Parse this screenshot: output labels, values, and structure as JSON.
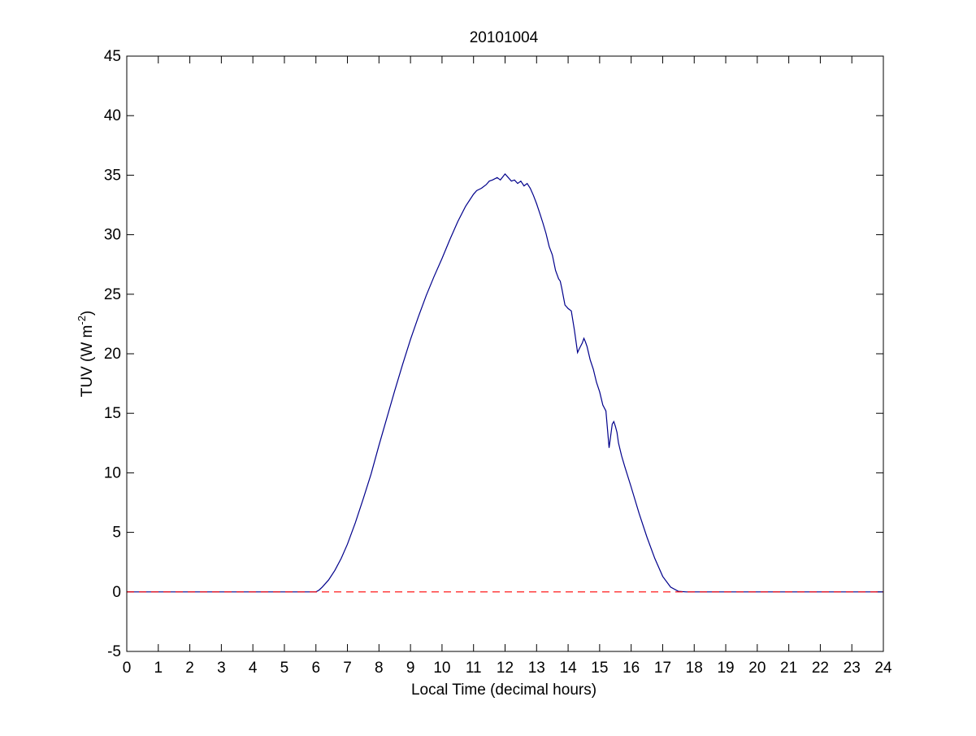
{
  "chart_data": {
    "type": "line",
    "title": "20101004",
    "xlabel": "Local Time (decimal hours)",
    "ylabel": {
      "text": "TUV (W m",
      "superscript": "-2",
      "suffix": ")"
    },
    "xlim": [
      0,
      24
    ],
    "ylim": [
      -5,
      45
    ],
    "xticks": [
      0,
      1,
      2,
      3,
      4,
      5,
      6,
      7,
      8,
      9,
      10,
      11,
      12,
      13,
      14,
      15,
      16,
      17,
      18,
      19,
      20,
      21,
      22,
      23,
      24
    ],
    "yticks": [
      -5,
      0,
      5,
      10,
      15,
      20,
      25,
      30,
      35,
      40,
      45
    ],
    "grid": false,
    "series": [
      {
        "style": "solid",
        "color": "#00008b",
        "x": [
          0,
          6.0,
          6.1,
          6.2,
          6.4,
          6.6,
          6.8,
          7.0,
          7.25,
          7.5,
          7.75,
          8.0,
          8.25,
          8.5,
          8.75,
          9.0,
          9.25,
          9.5,
          9.75,
          10.0,
          10.25,
          10.5,
          10.75,
          11.0,
          11.1,
          11.25,
          11.4,
          11.5,
          11.6,
          11.75,
          11.85,
          12.0,
          12.1,
          12.2,
          12.3,
          12.4,
          12.5,
          12.6,
          12.7,
          12.8,
          12.9,
          13.0,
          13.1,
          13.2,
          13.3,
          13.4,
          13.5,
          13.6,
          13.7,
          13.75,
          13.8,
          13.9,
          14.0,
          14.1,
          14.2,
          14.3,
          14.35,
          14.45,
          14.5,
          14.55,
          14.6,
          14.7,
          14.8,
          14.9,
          15.0,
          15.1,
          15.2,
          15.3,
          15.4,
          15.45,
          15.5,
          15.55,
          15.6,
          15.7,
          15.8,
          16.0,
          16.25,
          16.5,
          16.75,
          17.0,
          17.25,
          17.5,
          17.75,
          18.0,
          24
        ],
        "y": [
          0,
          0,
          0.15,
          0.4,
          1.0,
          1.8,
          2.8,
          4.0,
          5.8,
          7.8,
          9.9,
          12.3,
          14.6,
          16.9,
          19.1,
          21.2,
          23.1,
          24.9,
          26.5,
          28.0,
          29.6,
          31.1,
          32.4,
          33.4,
          33.7,
          33.9,
          34.2,
          34.5,
          34.6,
          34.8,
          34.6,
          35.1,
          34.8,
          34.5,
          34.6,
          34.3,
          34.5,
          34.1,
          34.3,
          33.9,
          33.3,
          32.6,
          31.8,
          31.0,
          30.1,
          29.0,
          28.3,
          27.0,
          26.3,
          26.1,
          25.5,
          24.1,
          23.8,
          23.6,
          22.0,
          20.1,
          20.4,
          20.9,
          21.3,
          21.0,
          20.6,
          19.5,
          18.7,
          17.6,
          16.8,
          15.7,
          15.2,
          12.1,
          14.1,
          14.3,
          13.9,
          13.4,
          12.5,
          11.4,
          10.5,
          8.8,
          6.6,
          4.6,
          2.8,
          1.3,
          0.4,
          0.05,
          0,
          0,
          0
        ]
      },
      {
        "style": "dashed",
        "color": "#ff0000",
        "x": [
          0,
          24
        ],
        "y": [
          0,
          0
        ]
      }
    ]
  }
}
